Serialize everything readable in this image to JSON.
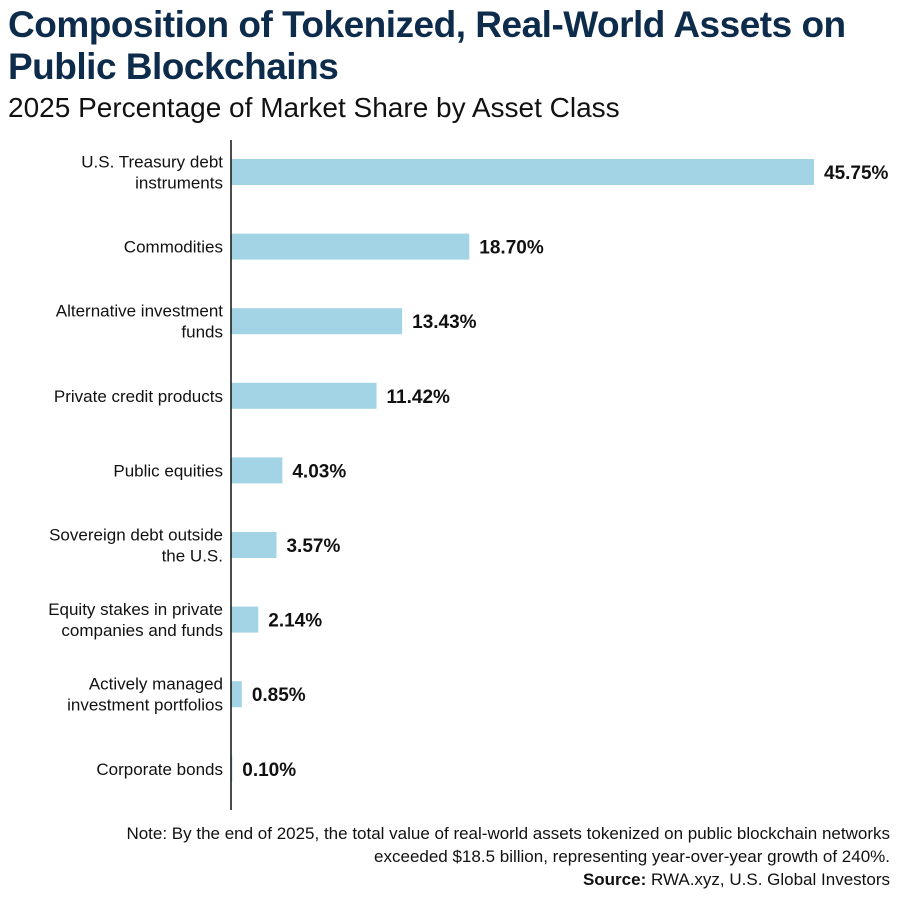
{
  "header": {
    "title": "Composition of Tokenized, Real-World Assets on Public Blockchains",
    "subtitle": "2025 Percentage of Market Share by Asset Class"
  },
  "colors": {
    "bar": "#a2d4e6",
    "title": "#0d2b4a",
    "axis": "#111111"
  },
  "chart_data": {
    "type": "bar",
    "orientation": "horizontal",
    "categories": [
      [
        "U.S. Treasury debt",
        "instruments"
      ],
      [
        "Commodities"
      ],
      [
        "Alternative investment",
        "funds"
      ],
      [
        "Private credit products"
      ],
      [
        "Public equities"
      ],
      [
        "Sovereign debt outside",
        "the U.S."
      ],
      [
        "Equity stakes in private",
        "companies and funds"
      ],
      [
        "Actively managed",
        "investment portfolios"
      ],
      [
        "Corporate bonds"
      ]
    ],
    "values": [
      45.75,
      18.7,
      13.43,
      11.42,
      4.03,
      3.57,
      2.14,
      0.85,
      0.1
    ],
    "value_labels": [
      "45.75%",
      "18.70%",
      "13.43%",
      "11.42%",
      "4.03%",
      "3.57%",
      "2.14%",
      "0.85%",
      "0.10%"
    ],
    "xlim": [
      0,
      45.75
    ],
    "grid": false,
    "legend": "none"
  },
  "footer": {
    "note_line1": "Note: By the end of 2025, the total value of real-world assets tokenized on public blockchain networks",
    "note_line2": "exceeded $18.5 billion, representing year-over-year growth of 240%.",
    "source_label": "Source:",
    "source_text": " RWA.xyz, U.S. Global Investors"
  }
}
